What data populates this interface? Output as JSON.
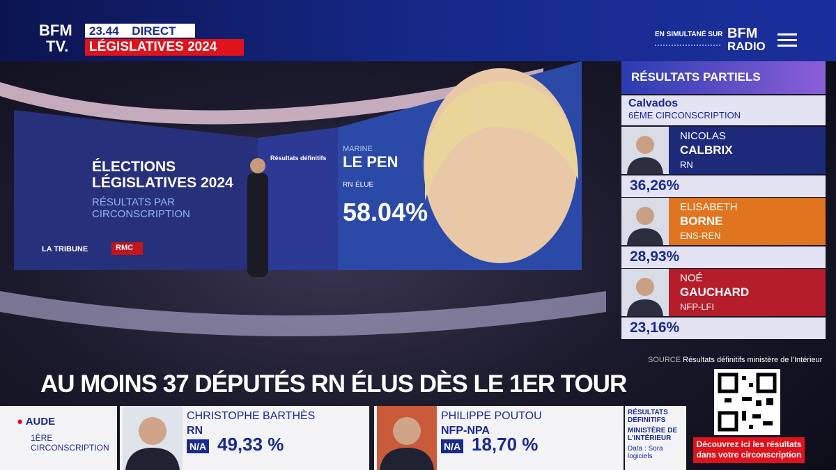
{
  "header": {
    "logo_top": "BFM",
    "logo_bottom": "TV.",
    "time": "23.44",
    "live": "DIRECT",
    "show": "LÉGISLATIVES 2024",
    "simulcast": "EN SIMULTANÉ SUR",
    "radio_top": "BFM",
    "radio_bottom": "RADIO"
  },
  "studio": {
    "title": "ÉLECTIONS LÉGISLATIVES 2024",
    "subtitle": "RÉSULTATS PAR CIRCONSCRIPTION",
    "partner_1": "LA TRIBUNE",
    "partner_2": "RMC",
    "screen_label": "Résultats définitifs",
    "first_name": "MARINE",
    "last_name": "LE PEN",
    "party": "RN",
    "status": "ÉLUE",
    "score": "58.04%"
  },
  "panel": {
    "title": "RÉSULTATS PARTIELS",
    "department": "Calvados",
    "district": "6ÈME CIRCONSCRIPTION",
    "candidates": [
      {
        "first_name": "NICOLAS",
        "last_name": "CALBRIX",
        "party": "RN",
        "score": "36,26%"
      },
      {
        "first_name": "ELISABETH",
        "last_name": "BORNE",
        "party": "ENS-REN",
        "score": "28,93%"
      },
      {
        "first_name": "NOÉ",
        "last_name": "GAUCHARD",
        "party": "NFP-LFI",
        "score": "23,16%"
      }
    ],
    "source_label": "SOURCE",
    "source": "Résultats définitifs ministère de l'Intérieur"
  },
  "headline": "AU MOINS 37 DÉPUTÉS RN ÉLUS DÈS LE 1ER TOUR",
  "ticker": {
    "department": "AUDE",
    "district": "1ÈRE CIRCONSCRIPTION",
    "candidates": [
      {
        "name": "CHRISTOPHE BARTHÈS",
        "party": "RN",
        "status": "N/A",
        "score": "49,33 %"
      },
      {
        "name": "PHILIPPE POUTOU",
        "party": "NFP-NPA",
        "status": "N/A",
        "score": "18,70 %"
      }
    ],
    "source_title": "RÉSULTATS DÉFINITIFS",
    "source": "MINISTÈRE DE L'INTÉRIEUR",
    "data_credit": "Data : Sora logiciels"
  },
  "cta": "Découvrez ici les résultats dans votre circonscription"
}
